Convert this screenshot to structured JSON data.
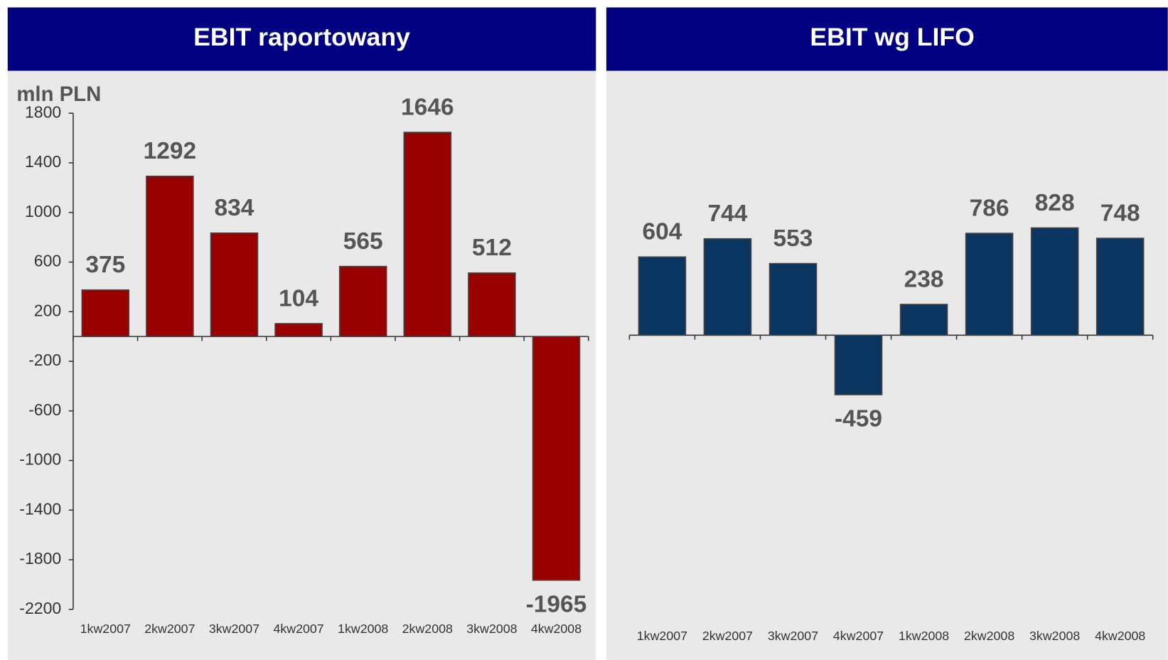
{
  "chart_data": [
    {
      "type": "bar",
      "title": "EBIT raportowany",
      "y_label": "mln PLN",
      "categories": [
        "1kw2007",
        "2kw2007",
        "3kw2007",
        "4kw2007",
        "1kw2008",
        "2kw2008",
        "3kw2008",
        "4kw2008"
      ],
      "values": [
        375,
        1292,
        834,
        104,
        565,
        1646,
        512,
        -1965
      ],
      "color": "#990000",
      "ylim": [
        -2200,
        1800
      ],
      "yticks": [
        -2200,
        -1800,
        -1400,
        -1000,
        -600,
        -200,
        200,
        600,
        1000,
        1400,
        1800
      ]
    },
    {
      "type": "bar",
      "title": "EBIT wg LIFO",
      "categories": [
        "1kw2007",
        "2kw2007",
        "3kw2007",
        "4kw2007",
        "1kw2008",
        "2kw2008",
        "3kw2008",
        "4kw2008"
      ],
      "values": [
        604,
        744,
        553,
        -459,
        238,
        786,
        828,
        748
      ],
      "color": "#0b3561"
    }
  ]
}
